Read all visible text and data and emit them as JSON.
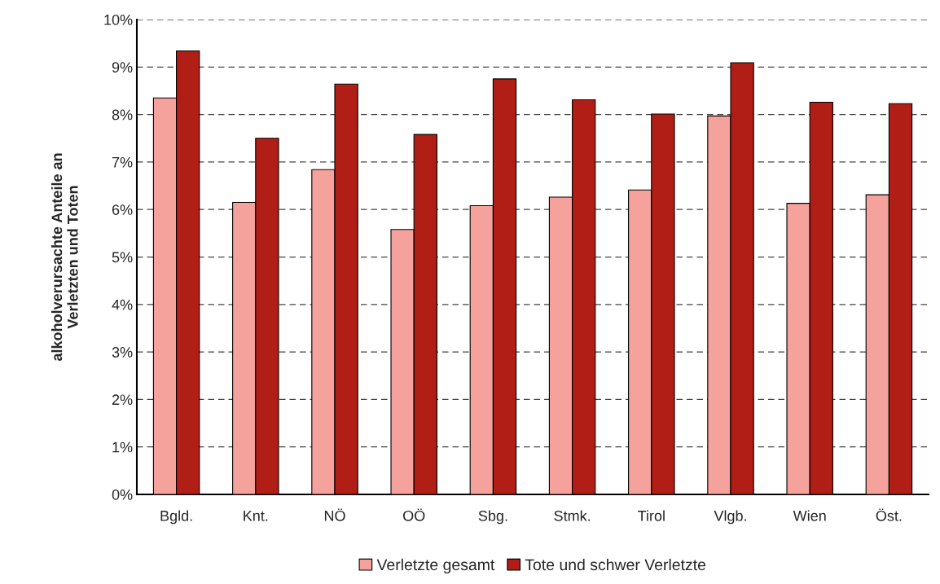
{
  "chart_data": {
    "type": "bar",
    "ylabel": "alkoholverursachte Anteile an\nVerletzten und Toten",
    "categories": [
      "Bgld.",
      "Knt.",
      "NÖ",
      "OÖ",
      "Sbg.",
      "Stmk.",
      "Tirol",
      "Vlgb.",
      "Wien",
      "Öst."
    ],
    "series": [
      {
        "name": "Verletzte gesamt",
        "color": "#f4a29b",
        "values": [
          8.35,
          6.15,
          6.84,
          5.58,
          6.08,
          6.26,
          6.41,
          7.97,
          6.13,
          6.31
        ]
      },
      {
        "name": "Tote und schwer Verletzte",
        "color": "#b01e15",
        "values": [
          9.34,
          7.5,
          8.64,
          7.58,
          8.75,
          8.31,
          8.01,
          9.09,
          8.26,
          8.23
        ]
      }
    ],
    "ylim": [
      0,
      10
    ],
    "yticks": [
      {
        "value": 0,
        "label": "0%"
      },
      {
        "value": 1,
        "label": "1%"
      },
      {
        "value": 2,
        "label": "2%"
      },
      {
        "value": 3,
        "label": "3%"
      },
      {
        "value": 4,
        "label": "4%"
      },
      {
        "value": 5,
        "label": "5%"
      },
      {
        "value": 6,
        "label": "6%"
      },
      {
        "value": 7,
        "label": "7%"
      },
      {
        "value": 8,
        "label": "8%"
      },
      {
        "value": 9,
        "label": "9%"
      },
      {
        "value": 10,
        "label": "10%"
      }
    ],
    "grid": "y",
    "line_style": "dashed",
    "legend": "bottom"
  }
}
